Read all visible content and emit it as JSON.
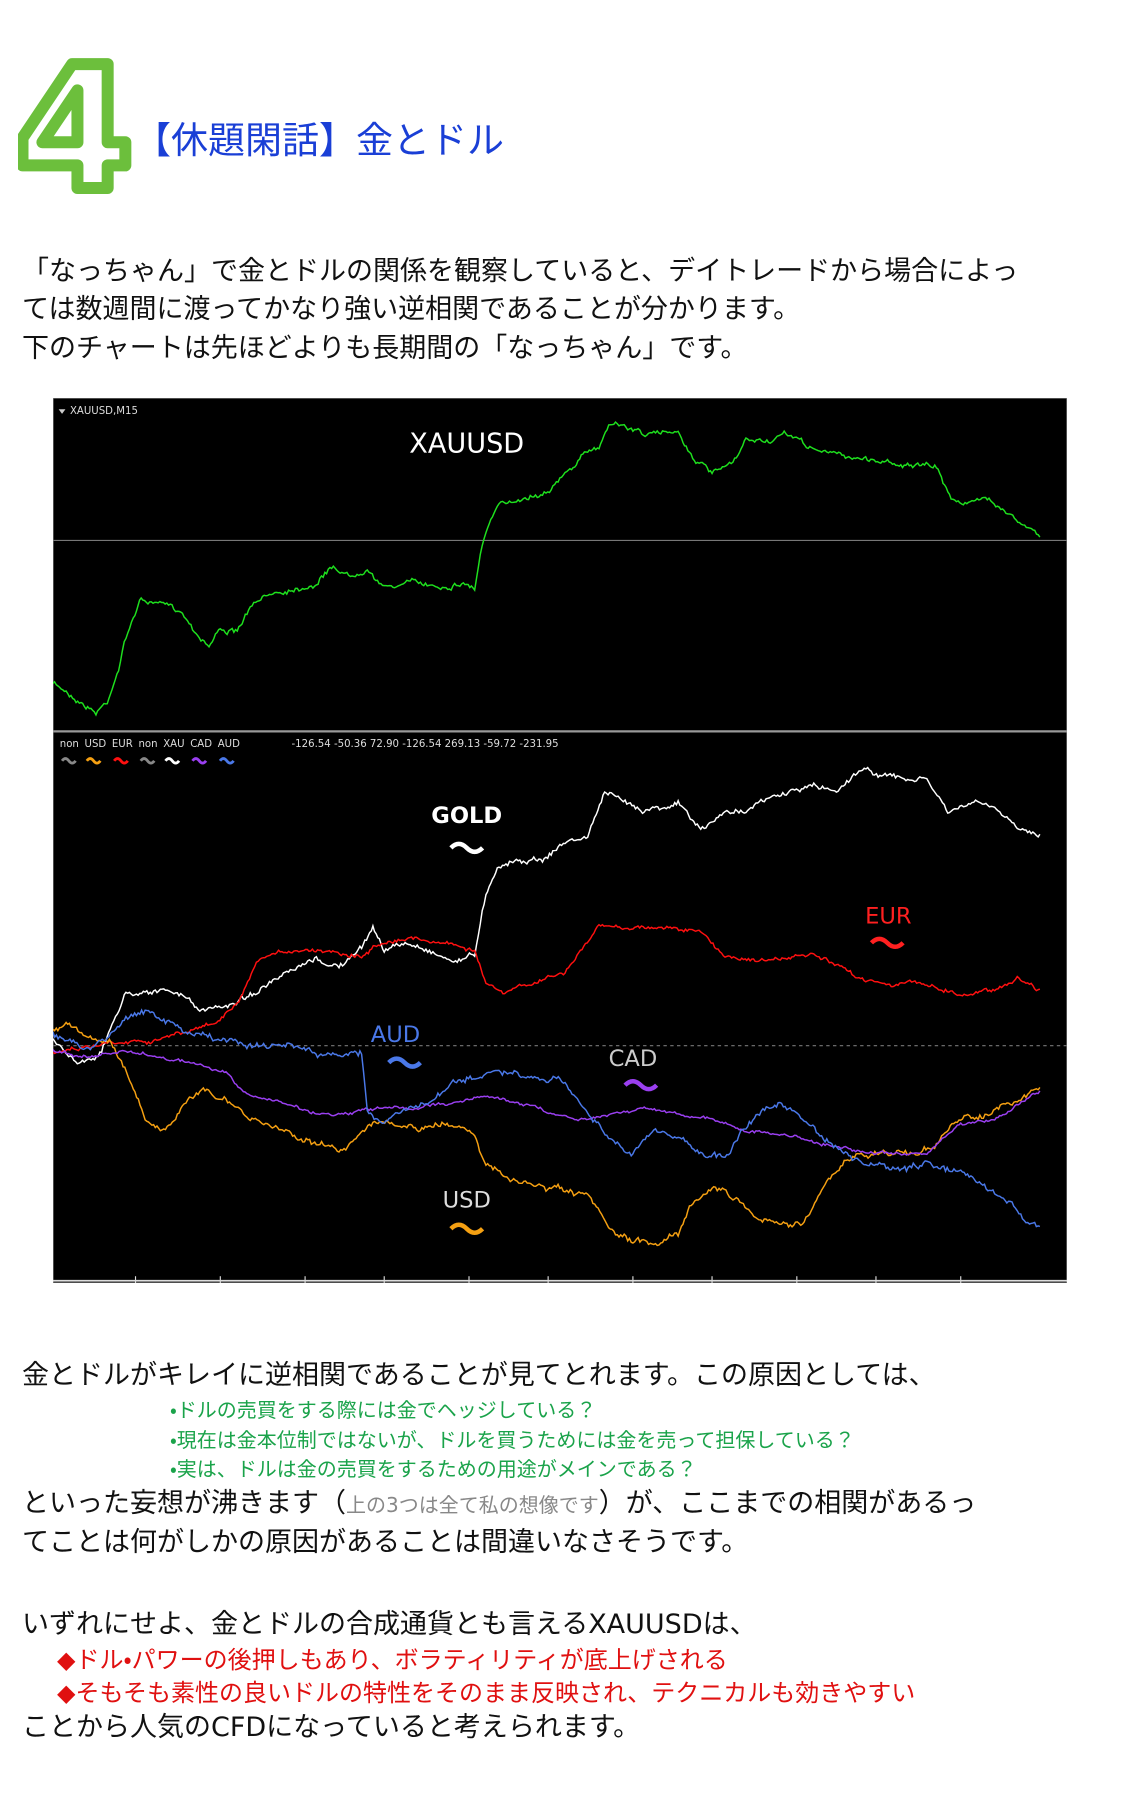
{
  "header": {
    "number": "4",
    "title": "【休題閑話】金とドル"
  },
  "intro": [
    "「なっちゃん」で金とドルの関係を観察していると、デイトレードから場合によっ",
    "ては数週間に渡ってかなり強い逆相関であることが分かります。",
    "下のチャートは先ほどよりも長期間の「なっちゃん」です。"
  ],
  "chart": {
    "symbol": "XAUUSD,M15",
    "main_label": "XAUUSD",
    "indicator_legend": [
      "non",
      "USD",
      "EUR",
      "non",
      "XAU",
      "CAD",
      "AUD"
    ],
    "indicator_values": "-126.54 -50.36 72.90 -126.54 269.13 -59.72 -231.95",
    "line_labels": [
      "GOLD",
      "EUR",
      "AUD",
      "CAD",
      "USD"
    ]
  },
  "body": {
    "line1": "金とドルがキレイに逆相関であることが見てとれます。この原因としては、",
    "reasons": [
      "・ドルの売買をする際には金でヘッジしている？",
      "・現在は金本位制ではないが、ドルを買うためには金を売って担保している？",
      "・実は、ドルは金の売買をするための用途がメインである？"
    ],
    "line2_start": "といった妄想が沸きます（",
    "line2_note": "上の3つは全て私の想像です",
    "line2_end": "）が、ここまでの相関があるっ",
    "line3": "てことは何がしかの原因があることは間違いなさそうです。",
    "line4": "いずれにせよ、金とドルの合成通貨とも言えるXAUUSDは、",
    "points": [
      "◆ドル・パワーの後押しもあり、ボラティリティが底上げされる",
      "◆そもそも素性の良いドルの特性をそのまま反映され、テクニカルも効きやすい"
    ],
    "line5": "ことから人気のCFDになっていると考えられます。"
  }
}
